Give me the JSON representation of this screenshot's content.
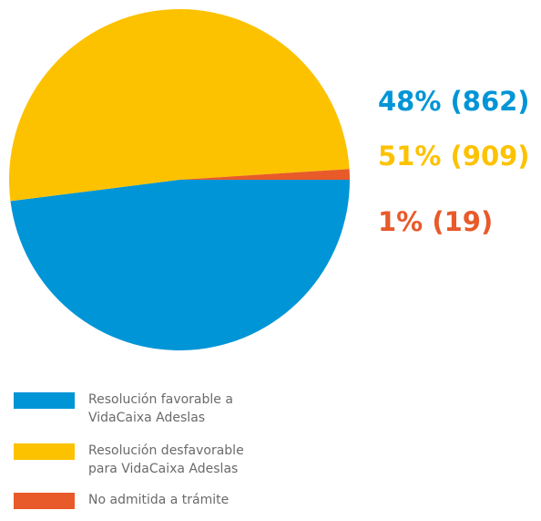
{
  "chart_data": {
    "type": "pie",
    "categories": [
      "Resolución favorable a VidaCaixa Adeslas",
      "Resolución desfavorable para VidaCaixa Adeslas",
      "No admitida a trámite"
    ],
    "values": [
      48,
      51,
      1
    ],
    "value_labels": [
      "48% (862)",
      "51% (909)",
      "1% (19)"
    ],
    "colors": [
      "#0095d6",
      "#fcc200",
      "#e85a2a"
    ]
  }
}
